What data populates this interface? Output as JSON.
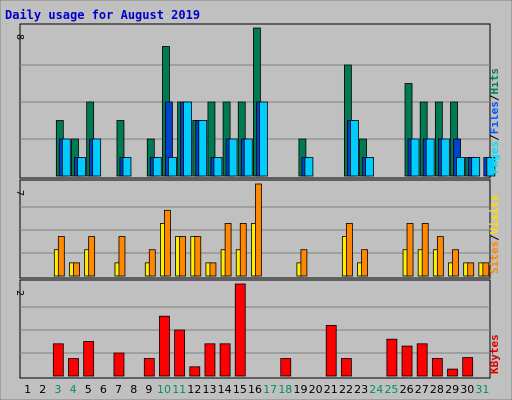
{
  "chart_data": {
    "type": "bar",
    "title": "Daily usage for August 2019",
    "categories": [
      "1",
      "2",
      "3",
      "4",
      "5",
      "6",
      "7",
      "8",
      "9",
      "10",
      "11",
      "12",
      "13",
      "14",
      "15",
      "16",
      "17",
      "18",
      "19",
      "20",
      "21",
      "22",
      "23",
      "24",
      "25",
      "26",
      "27",
      "28",
      "29",
      "30",
      "31"
    ],
    "weekend_days": [
      "3",
      "4",
      "10",
      "11",
      "17",
      "18",
      "24",
      "25",
      "31"
    ],
    "panels": [
      {
        "name": "hits-files-pages",
        "ymax_label": "8",
        "ymax": 8,
        "legend": [
          "Pages",
          "/",
          "Files",
          "/",
          "Hits"
        ],
        "legend_colors": [
          "#00e0ff",
          "#000",
          "#0055ff",
          "#000",
          "#008060"
        ],
        "series": [
          {
            "name": "Hits",
            "color": "#007a55",
            "values": [
              0,
              0,
              3,
              2,
              4,
              0,
              3,
              0,
              2,
              7,
              4,
              3,
              4,
              4,
              4,
              8,
              0,
              0,
              2,
              0,
              0,
              6,
              2,
              0,
              0,
              5,
              4,
              4,
              4,
              1,
              0
            ]
          },
          {
            "name": "Files",
            "color": "#0044cc",
            "values": [
              0,
              0,
              2,
              1,
              2,
              0,
              1,
              0,
              1,
              4,
              4,
              3,
              1,
              2,
              2,
              4,
              0,
              0,
              1,
              0,
              0,
              3,
              1,
              0,
              0,
              2,
              2,
              2,
              2,
              1,
              1
            ]
          },
          {
            "name": "Pages",
            "color": "#00ccff",
            "values": [
              0,
              0,
              2,
              1,
              2,
              0,
              1,
              0,
              1,
              1,
              4,
              3,
              1,
              2,
              2,
              4,
              0,
              0,
              1,
              0,
              0,
              3,
              1,
              0,
              0,
              2,
              2,
              2,
              1,
              1,
              1
            ]
          }
        ]
      },
      {
        "name": "visits-sites",
        "ymax_label": "7",
        "ymax": 7,
        "legend": [
          "Sites",
          "/",
          "Visits"
        ],
        "legend_colors": [
          "#ff8800",
          "#000",
          "#ffdd00"
        ],
        "series": [
          {
            "name": "Visits",
            "color": "#ffee00",
            "values": [
              0,
              0,
              2,
              1,
              2,
              0,
              1,
              0,
              1,
              4,
              3,
              3,
              1,
              2,
              2,
              4,
              0,
              0,
              1,
              0,
              0,
              3,
              1,
              0,
              0,
              2,
              2,
              2,
              1,
              1,
              1
            ]
          },
          {
            "name": "Sites",
            "color": "#ff8800",
            "values": [
              0,
              0,
              3,
              1,
              3,
              0,
              3,
              0,
              2,
              5,
              3,
              3,
              1,
              4,
              4,
              7,
              0,
              0,
              2,
              0,
              0,
              4,
              2,
              0,
              0,
              4,
              4,
              3,
              2,
              1,
              1
            ]
          }
        ]
      },
      {
        "name": "kbytes",
        "ymax_label": "2",
        "ymax": 2,
        "legend": [
          "KBytes"
        ],
        "legend_colors": [
          "#dd0000"
        ],
        "series": [
          {
            "name": "KBytes",
            "color": "#ff0000",
            "values": [
              0,
              0,
              0.7,
              0.38,
              0.75,
              0,
              0.5,
              0,
              0.38,
              1.3,
              1.0,
              0.2,
              0.7,
              0.7,
              2.0,
              0,
              0,
              0.38,
              0,
              0,
              1.1,
              0.38,
              0,
              0,
              0.8,
              0.65,
              0.7,
              0.38,
              0.15,
              0.4,
              0
            ]
          }
        ]
      }
    ]
  }
}
